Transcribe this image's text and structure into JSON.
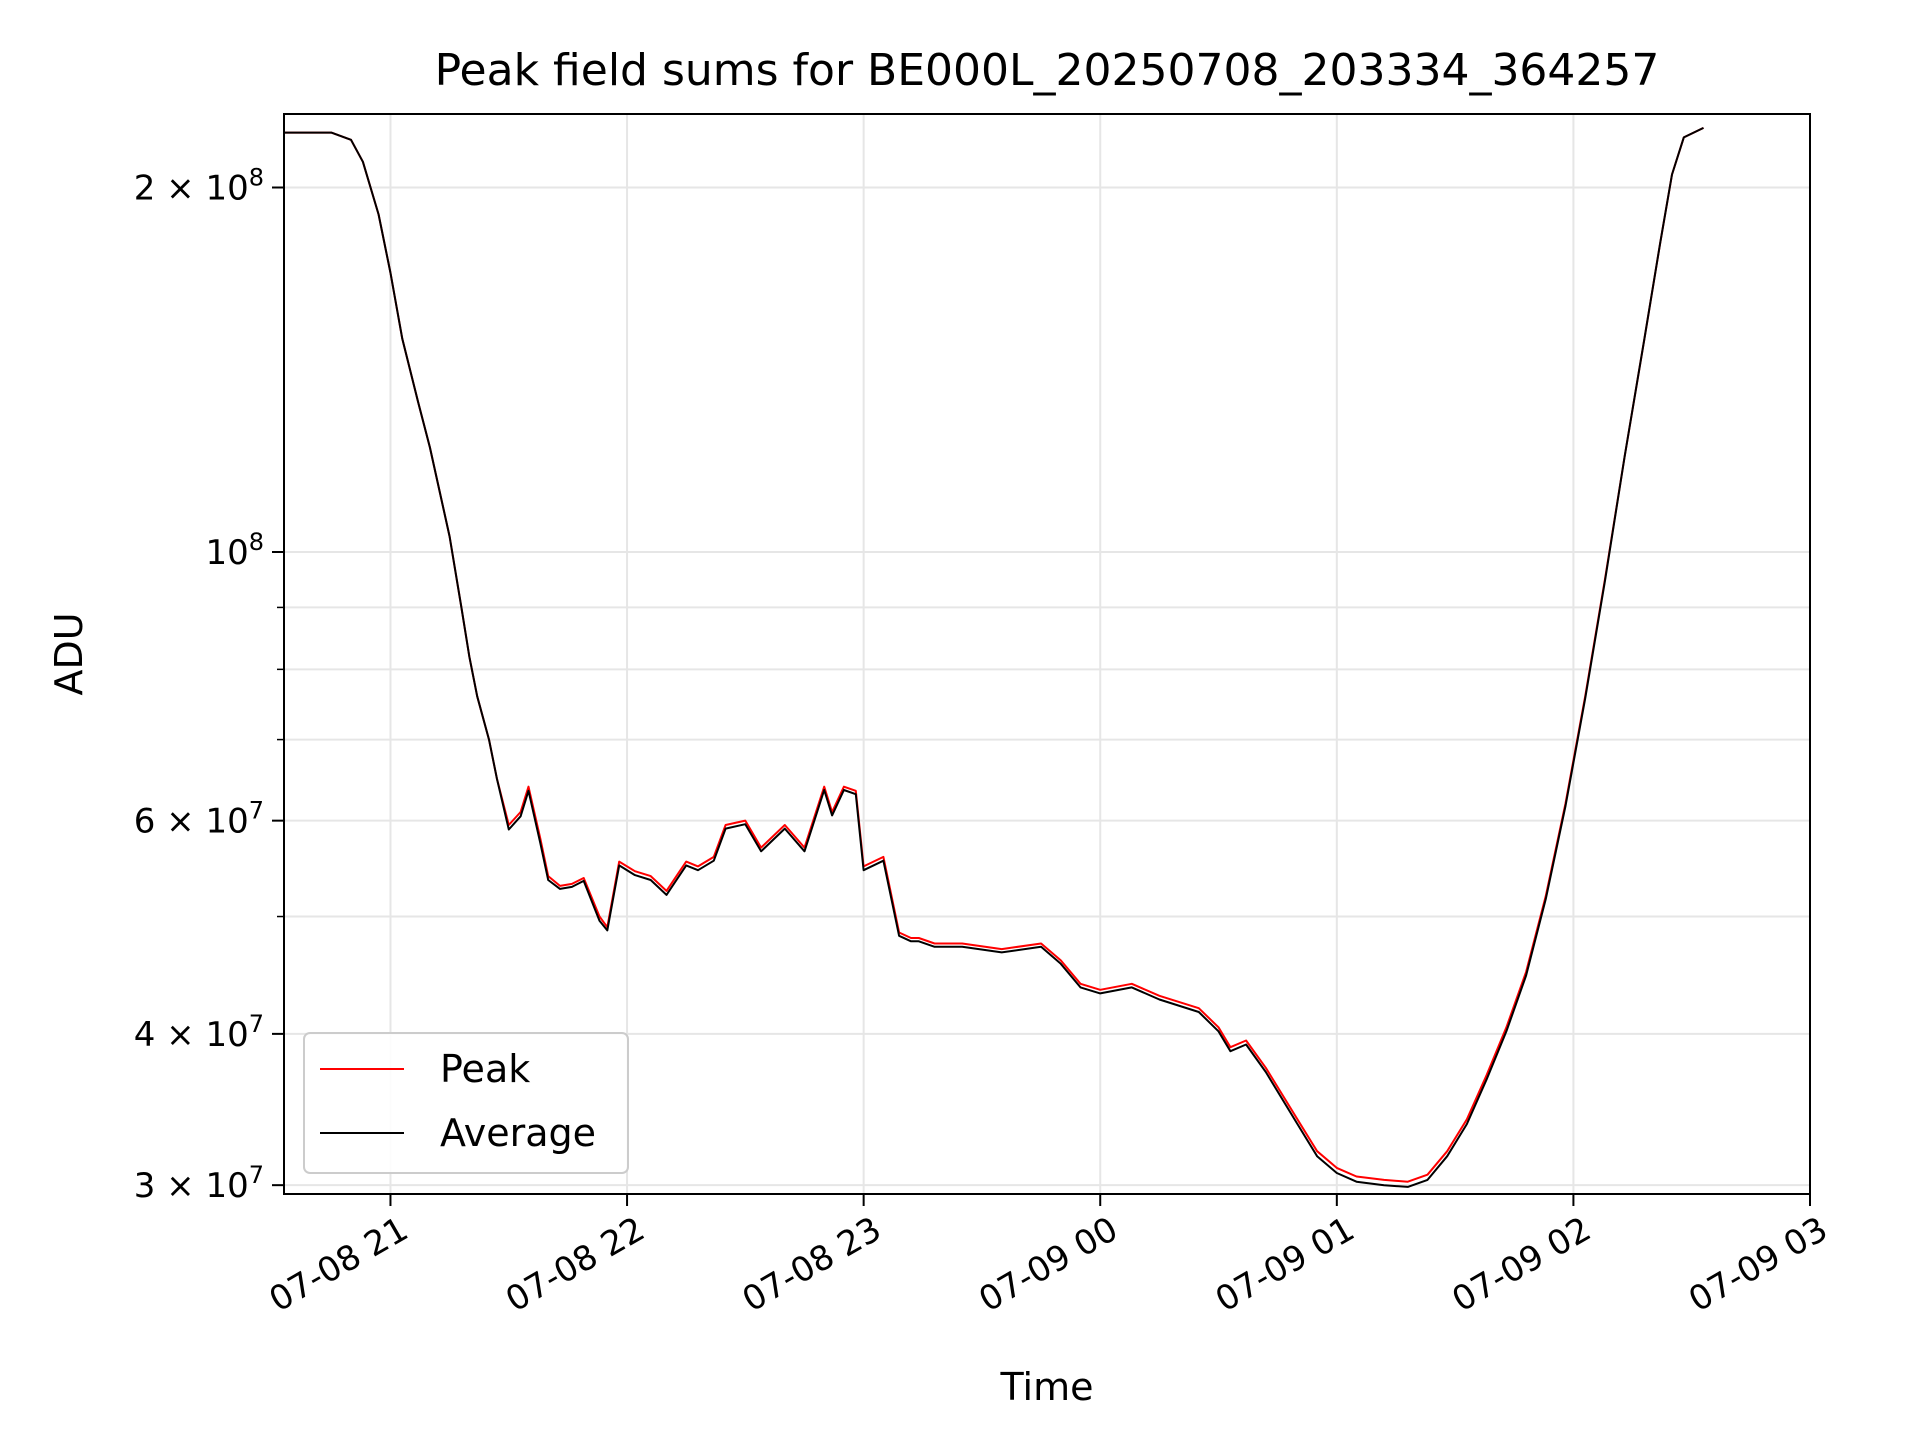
{
  "chart_data": {
    "type": "line",
    "title": "Peak field sums for BE000L_20250708_203334_364257",
    "xlabel": "Time",
    "ylabel": "ADU",
    "y_scale": "log",
    "xlim": [
      "2025-07-08 20:33",
      "2025-07-09 03:00"
    ],
    "ylim": [
      29500000,
      230000000
    ],
    "grid": true,
    "legend_position": "lower-left",
    "x_ticks": [
      "2025-07-08 21:00",
      "2025-07-08 22:00",
      "2025-07-08 23:00",
      "2025-07-09 00:00",
      "2025-07-09 01:00",
      "2025-07-09 02:00",
      "2025-07-09 03:00"
    ],
    "x_tick_labels": [
      "07-08 21",
      "07-08 22",
      "07-08 23",
      "07-09 00",
      "07-09 01",
      "07-09 02",
      "07-09 03"
    ],
    "y_ticks_labeled": [
      {
        "value": 30000000,
        "mantissa": "3",
        "exponent": "7"
      },
      {
        "value": 40000000,
        "mantissa": "4",
        "exponent": "7"
      },
      {
        "value": 60000000,
        "mantissa": "6",
        "exponent": "7"
      },
      {
        "value": 100000000,
        "mantissa": "",
        "exponent": "8"
      },
      {
        "value": 200000000,
        "mantissa": "2",
        "exponent": "8"
      }
    ],
    "y_ticks_minor": [
      50000000,
      70000000,
      80000000,
      90000000
    ],
    "series": [
      {
        "name": "Peak",
        "color": "#ff0000",
        "x": [
          "2025-07-08 20:33",
          "2025-07-08 20:45",
          "2025-07-08 20:50",
          "2025-07-08 20:53",
          "2025-07-08 20:57",
          "2025-07-08 21:00",
          "2025-07-08 21:03",
          "2025-07-08 21:07",
          "2025-07-08 21:10",
          "2025-07-08 21:12",
          "2025-07-08 21:15",
          "2025-07-08 21:18",
          "2025-07-08 21:20",
          "2025-07-08 21:22",
          "2025-07-08 21:25",
          "2025-07-08 21:27",
          "2025-07-08 21:30",
          "2025-07-08 21:33",
          "2025-07-08 21:35",
          "2025-07-08 21:38",
          "2025-07-08 21:40",
          "2025-07-08 21:43",
          "2025-07-08 21:46",
          "2025-07-08 21:49",
          "2025-07-08 21:53",
          "2025-07-08 21:55",
          "2025-07-08 21:58",
          "2025-07-08 22:02",
          "2025-07-08 22:06",
          "2025-07-08 22:10",
          "2025-07-08 22:15",
          "2025-07-08 22:18",
          "2025-07-08 22:22",
          "2025-07-08 22:25",
          "2025-07-08 22:30",
          "2025-07-08 22:34",
          "2025-07-08 22:40",
          "2025-07-08 22:45",
          "2025-07-08 22:50",
          "2025-07-08 22:52",
          "2025-07-08 22:55",
          "2025-07-08 22:58",
          "2025-07-08 23:00",
          "2025-07-08 23:05",
          "2025-07-08 23:09",
          "2025-07-08 23:12",
          "2025-07-08 23:14",
          "2025-07-08 23:18",
          "2025-07-08 23:25",
          "2025-07-08 23:35",
          "2025-07-08 23:45",
          "2025-07-08 23:50",
          "2025-07-08 23:55",
          "2025-07-09 00:00",
          "2025-07-09 00:08",
          "2025-07-09 00:15",
          "2025-07-09 00:25",
          "2025-07-09 00:30",
          "2025-07-09 00:33",
          "2025-07-09 00:37",
          "2025-07-09 00:42",
          "2025-07-09 00:50",
          "2025-07-09 00:55",
          "2025-07-09 01:00",
          "2025-07-09 01:05",
          "2025-07-09 01:12",
          "2025-07-09 01:18",
          "2025-07-09 01:23",
          "2025-07-09 01:28",
          "2025-07-09 01:33",
          "2025-07-09 01:38",
          "2025-07-09 01:43",
          "2025-07-09 01:48",
          "2025-07-09 01:53",
          "2025-07-09 01:58",
          "2025-07-09 02:03",
          "2025-07-09 02:08",
          "2025-07-09 02:13",
          "2025-07-09 02:18",
          "2025-07-09 02:22",
          "2025-07-09 02:25",
          "2025-07-09 02:28",
          "2025-07-09 02:33"
        ],
        "y": [
          222000000,
          222000000,
          219000000,
          210000000,
          190000000,
          170000000,
          150000000,
          133000000,
          122000000,
          114000000,
          103000000,
          90000000,
          82000000,
          76000000,
          70000000,
          65000000,
          59500000,
          61000000,
          64000000,
          58000000,
          54000000,
          53000000,
          53200000,
          53800000,
          50000000,
          49000000,
          55500000,
          54500000,
          54000000,
          52500000,
          55500000,
          55000000,
          56000000,
          59500000,
          60000000,
          57000000,
          59500000,
          57000000,
          64000000,
          61000000,
          64000000,
          63500000,
          55000000,
          56000000,
          48500000,
          48000000,
          48000000,
          47500000,
          47500000,
          47000000,
          47500000,
          46000000,
          44000000,
          43500000,
          44000000,
          43000000,
          42000000,
          40500000,
          39000000,
          39500000,
          37500000,
          34000000,
          32000000,
          31000000,
          30500000,
          30300000,
          30200000,
          30600000,
          32000000,
          34000000,
          37000000,
          40500000,
          45000000,
          52000000,
          62000000,
          76000000,
          95000000,
          120000000,
          150000000,
          180000000,
          205000000,
          220000000,
          224000000
        ]
      },
      {
        "name": "Average",
        "color": "#000000",
        "x": [
          "2025-07-08 20:33",
          "2025-07-08 20:45",
          "2025-07-08 20:50",
          "2025-07-08 20:53",
          "2025-07-08 20:57",
          "2025-07-08 21:00",
          "2025-07-08 21:03",
          "2025-07-08 21:07",
          "2025-07-08 21:10",
          "2025-07-08 21:12",
          "2025-07-08 21:15",
          "2025-07-08 21:18",
          "2025-07-08 21:20",
          "2025-07-08 21:22",
          "2025-07-08 21:25",
          "2025-07-08 21:27",
          "2025-07-08 21:30",
          "2025-07-08 21:33",
          "2025-07-08 21:35",
          "2025-07-08 21:38",
          "2025-07-08 21:40",
          "2025-07-08 21:43",
          "2025-07-08 21:46",
          "2025-07-08 21:49",
          "2025-07-08 21:53",
          "2025-07-08 21:55",
          "2025-07-08 21:58",
          "2025-07-08 22:02",
          "2025-07-08 22:06",
          "2025-07-08 22:10",
          "2025-07-08 22:15",
          "2025-07-08 22:18",
          "2025-07-08 22:22",
          "2025-07-08 22:25",
          "2025-07-08 22:30",
          "2025-07-08 22:34",
          "2025-07-08 22:40",
          "2025-07-08 22:45",
          "2025-07-08 22:50",
          "2025-07-08 22:52",
          "2025-07-08 22:55",
          "2025-07-08 22:58",
          "2025-07-08 23:00",
          "2025-07-08 23:05",
          "2025-07-08 23:09",
          "2025-07-08 23:12",
          "2025-07-08 23:14",
          "2025-07-08 23:18",
          "2025-07-08 23:25",
          "2025-07-08 23:35",
          "2025-07-08 23:45",
          "2025-07-08 23:50",
          "2025-07-08 23:55",
          "2025-07-09 00:00",
          "2025-07-09 00:08",
          "2025-07-09 00:15",
          "2025-07-09 00:25",
          "2025-07-09 00:30",
          "2025-07-09 00:33",
          "2025-07-09 00:37",
          "2025-07-09 00:42",
          "2025-07-09 00:50",
          "2025-07-09 00:55",
          "2025-07-09 01:00",
          "2025-07-09 01:05",
          "2025-07-09 01:12",
          "2025-07-09 01:18",
          "2025-07-09 01:23",
          "2025-07-09 01:28",
          "2025-07-09 01:33",
          "2025-07-09 01:38",
          "2025-07-09 01:43",
          "2025-07-09 01:48",
          "2025-07-09 01:53",
          "2025-07-09 01:58",
          "2025-07-09 02:03",
          "2025-07-09 02:08",
          "2025-07-09 02:13",
          "2025-07-09 02:18",
          "2025-07-09 02:22",
          "2025-07-09 02:25",
          "2025-07-09 02:28",
          "2025-07-09 02:33"
        ],
        "y": [
          222000000,
          222000000,
          219000000,
          210000000,
          190000000,
          170000000,
          150000000,
          133000000,
          122000000,
          114000000,
          103000000,
          90000000,
          82000000,
          76000000,
          70000000,
          65000000,
          59000000,
          60500000,
          63500000,
          57500000,
          53600000,
          52700000,
          52900000,
          53500000,
          49600000,
          48700000,
          55100000,
          54100000,
          53600000,
          52100000,
          55100000,
          54600000,
          55600000,
          59100000,
          59600000,
          56600000,
          59100000,
          56600000,
          63600000,
          60600000,
          63600000,
          63100000,
          54600000,
          55600000,
          48200000,
          47700000,
          47700000,
          47200000,
          47200000,
          46700000,
          47200000,
          45700000,
          43700000,
          43200000,
          43700000,
          42700000,
          41700000,
          40200000,
          38700000,
          39200000,
          37200000,
          33700000,
          31700000,
          30700000,
          30200000,
          30000000,
          29900000,
          30300000,
          31700000,
          33700000,
          36700000,
          40200000,
          44700000,
          51700000,
          61700000,
          75700000,
          94700000,
          120000000,
          150000000,
          180000000,
          205000000,
          220000000,
          224000000
        ]
      }
    ]
  }
}
